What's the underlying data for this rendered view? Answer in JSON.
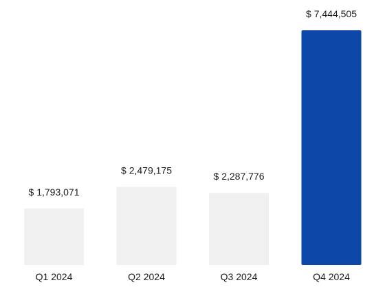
{
  "chart_data": {
    "type": "bar",
    "categories": [
      "Q1 2024",
      "Q2 2024",
      "Q3 2024",
      "Q4 2024"
    ],
    "values": [
      1793071,
      2479175,
      2287776,
      7444505
    ],
    "data_labels": [
      "$ 1,793,071",
      "$ 2,479,175",
      "$ 2,287,776",
      "$ 7,444,505"
    ],
    "highlight_index": 3,
    "colors": {
      "bar": "#f0f0f0",
      "highlight": "#0d47a8",
      "text": "#1a1a1a",
      "background": "#ffffff"
    },
    "title": "",
    "xlabel": "",
    "ylabel": "",
    "ylim": [
      0,
      7444505
    ],
    "grid": false,
    "legend": "none"
  }
}
